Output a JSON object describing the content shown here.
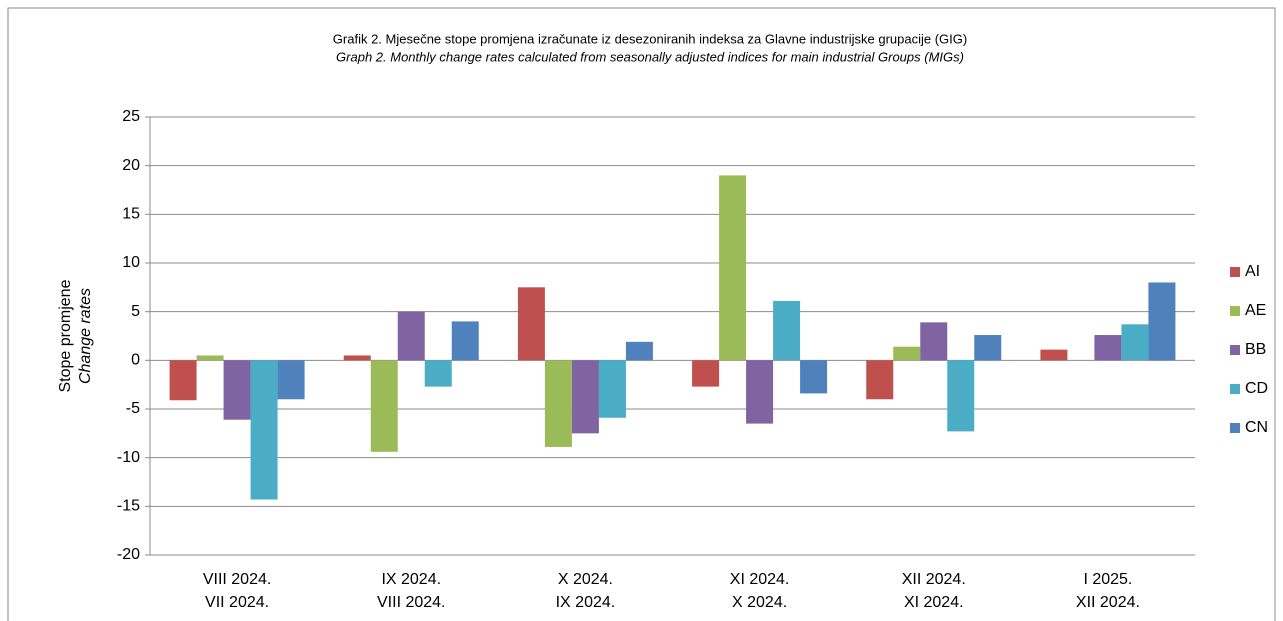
{
  "chart_data": {
    "type": "bar",
    "title": "Grafik 2. Mjesečne stope promjena izračunate iz desezoniranih indeksa za Glavne industrijske grupacije (GIG)",
    "subtitle": "Graph 2. Monthly change rates calculated from seasonally adjusted indices for main industrial Groups (MIGs)",
    "y_label": "Stope promjene",
    "y_label_en": "Change rates",
    "categories": [
      [
        "VIII 2024.",
        "VII 2024."
      ],
      [
        "IX 2024.",
        "VIII 2024."
      ],
      [
        "X 2024.",
        "IX 2024."
      ],
      [
        "XI 2024.",
        "X 2024."
      ],
      [
        "XII 2024.",
        "XI 2024."
      ],
      [
        "I 2025.",
        "XII 2024."
      ]
    ],
    "series": [
      {
        "name": "AI",
        "color": "#c0504d",
        "values": [
          -4.1,
          0.5,
          7.5,
          -2.7,
          -4.0,
          1.1
        ]
      },
      {
        "name": "AE",
        "color": "#9bbb59",
        "values": [
          0.5,
          -9.4,
          -8.9,
          19.0,
          1.4,
          0
        ]
      },
      {
        "name": "BB",
        "color": "#8064a2",
        "values": [
          -6.1,
          5.0,
          -7.5,
          -6.5,
          3.9,
          2.6
        ]
      },
      {
        "name": "CD",
        "color": "#4bacc6",
        "values": [
          -14.3,
          -2.7,
          -5.9,
          6.1,
          -7.3,
          3.7
        ]
      },
      {
        "name": "CN",
        "color": "#4f81bd",
        "values": [
          -4.0,
          4.0,
          1.9,
          -3.4,
          2.6,
          8.0
        ]
      }
    ],
    "ylim": [
      -20,
      25
    ],
    "yticks": [
      -20,
      -15,
      -10,
      -5,
      0,
      5,
      10,
      15,
      20,
      25
    ],
    "grid": true,
    "legend": "right"
  }
}
